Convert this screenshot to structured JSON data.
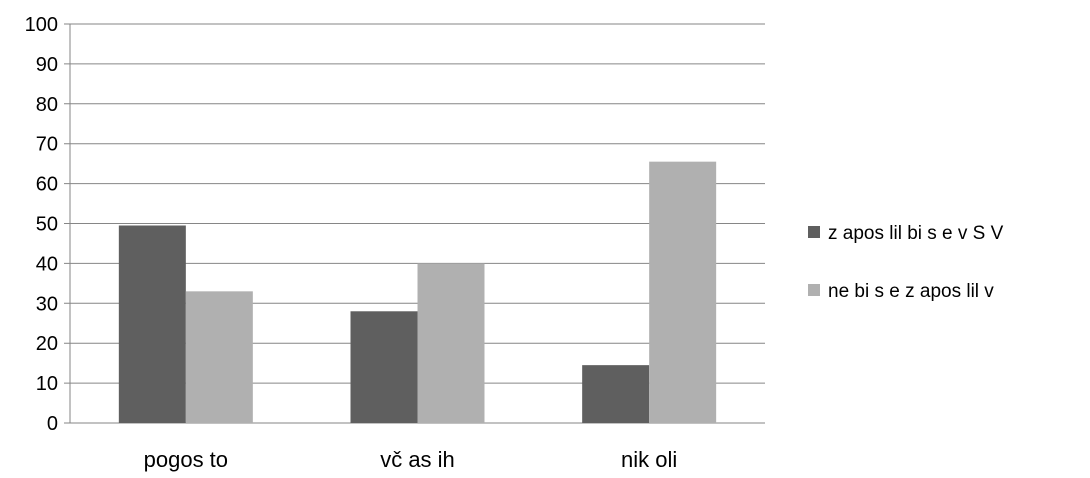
{
  "chart_data": {
    "type": "bar",
    "categories": [
      "pogos to",
      "vč as ih",
      "nik oli"
    ],
    "series": [
      {
        "name": "z apos lil bi s e v S V",
        "color": "#5f5f5f",
        "values": [
          49.5,
          28,
          14.5
        ]
      },
      {
        "name": "ne bi s e z apos lil v",
        "color": "#b0b0b0",
        "values": [
          33,
          40,
          65.5
        ]
      }
    ],
    "yticks": [
      "0",
      "10",
      "20",
      "30",
      "40",
      "50",
      "60",
      "70",
      "80",
      "90",
      "100"
    ],
    "ylim": [
      0,
      100
    ],
    "grid": true,
    "legend_position": "right"
  }
}
